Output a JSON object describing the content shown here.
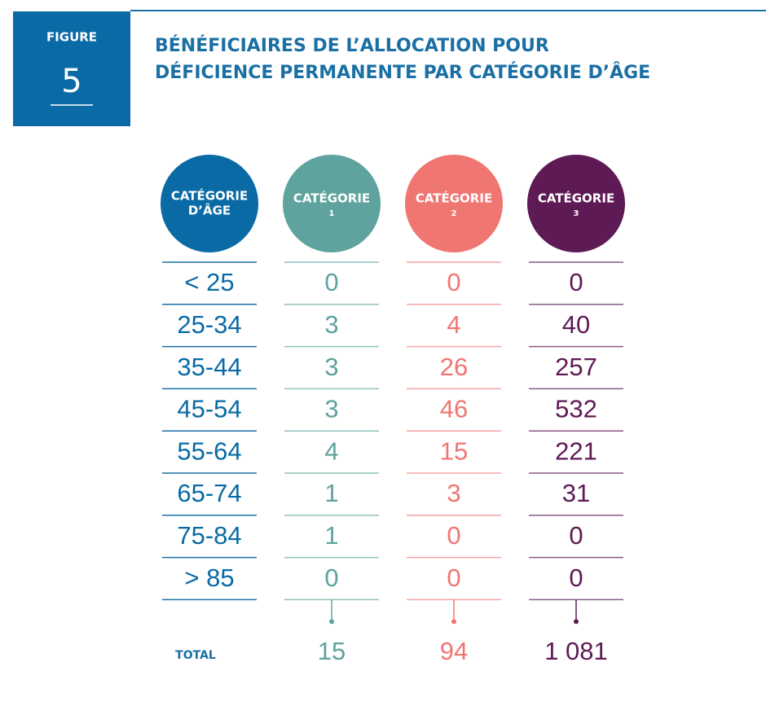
{
  "figure": {
    "label": "FIGURE",
    "number": 5
  },
  "title": [
    "BÉNÉFICIAIRES DE L’ALLOCATION POUR",
    "DÉFICIENCE PERMANENTE PAR CATÉGORIE D’ÂGE"
  ],
  "table": {
    "headers": [
      [
        "CATÉGORIE",
        "D’ÂGE"
      ],
      [
        "CATÉGORIE",
        "1"
      ],
      [
        "CATÉGORIE",
        "2"
      ],
      [
        "CATÉGORIE",
        "3"
      ]
    ],
    "rows": [
      [
        "< 25",
        0,
        0,
        0
      ],
      [
        "25-34",
        3,
        4,
        40
      ],
      [
        "35-44",
        3,
        26,
        257
      ],
      [
        "45-54",
        3,
        46,
        532
      ],
      [
        "55-64",
        4,
        15,
        221
      ],
      [
        "65-74",
        1,
        3,
        31
      ],
      [
        "75-84",
        1,
        0,
        0
      ],
      [
        "> 85",
        0,
        0,
        0
      ]
    ],
    "total": {
      "label": "TOTAL",
      "values": [
        15,
        94,
        "1 081"
      ]
    }
  }
}
